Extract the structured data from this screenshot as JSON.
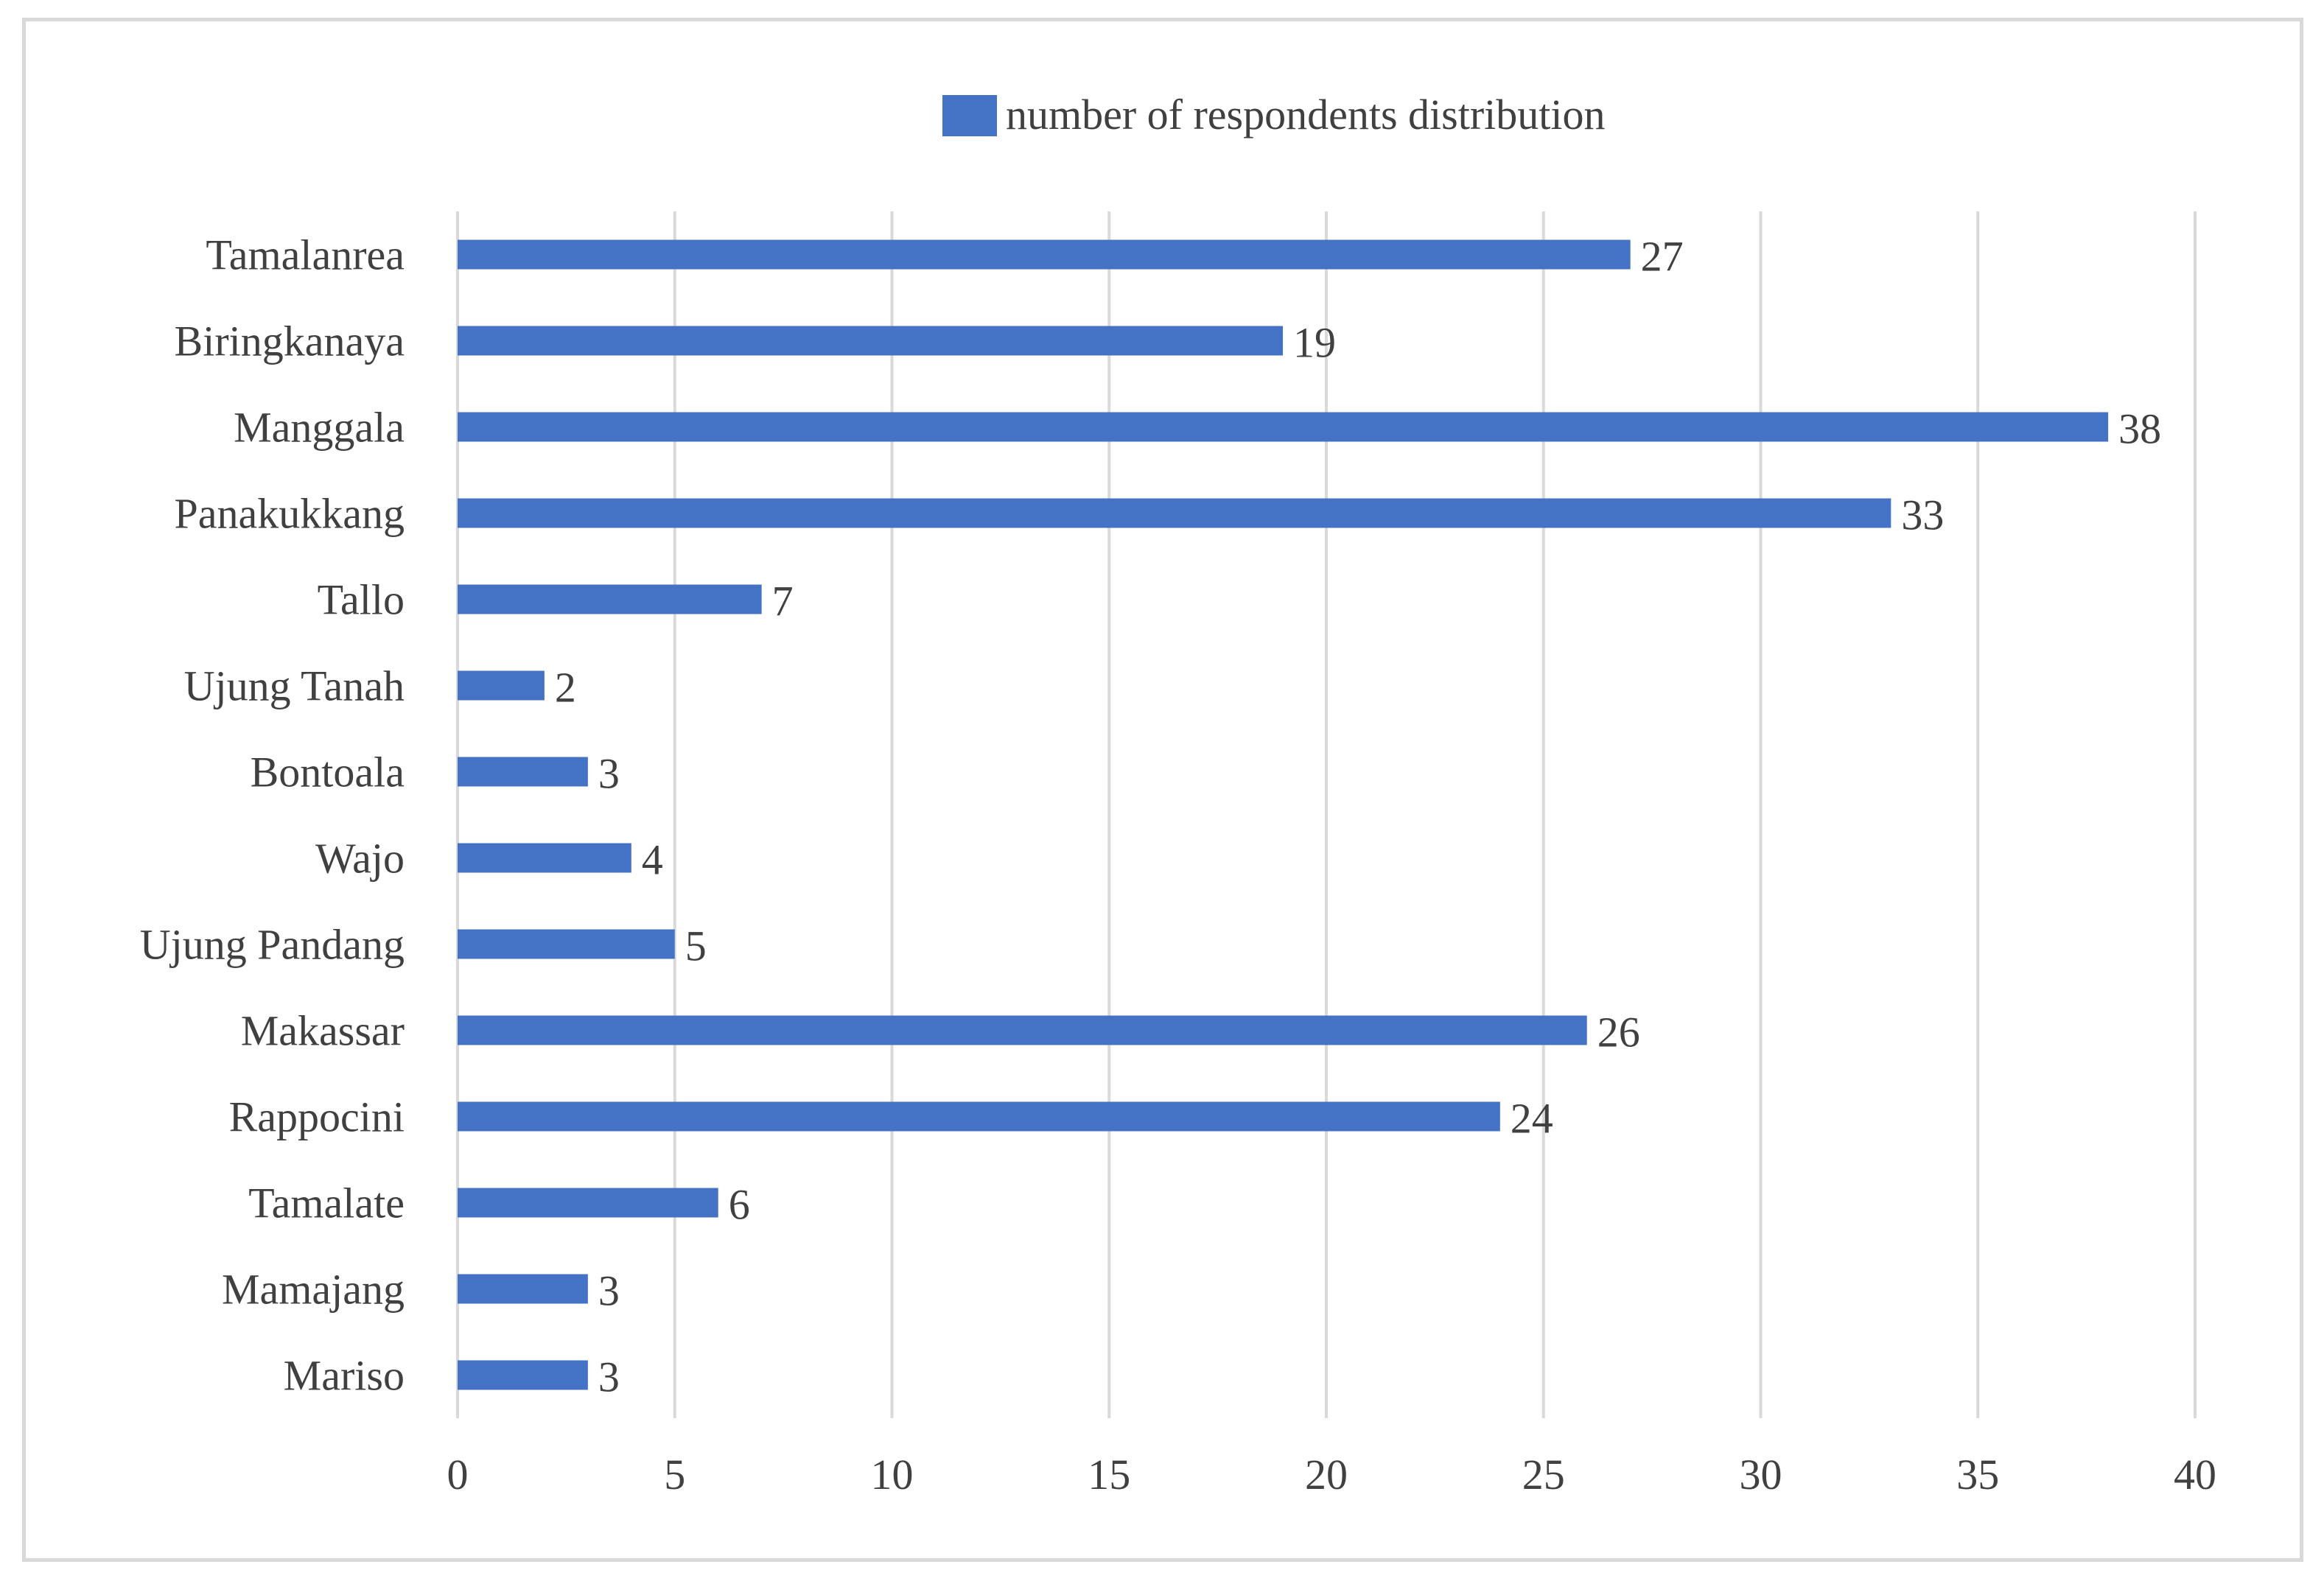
{
  "chart_data": {
    "type": "bar",
    "orientation": "horizontal",
    "title": "",
    "xlabel": "",
    "ylabel": "",
    "categories": [
      "Tamalanrea",
      "Biringkanaya",
      "Manggala",
      "Panakukkang",
      "Tallo",
      "Ujung Tanah",
      "Bontoala",
      "Wajo",
      "Ujung Pandang",
      "Makassar",
      "Rappocini",
      "Tamalate",
      "Mamajang",
      "Mariso"
    ],
    "series": [
      {
        "name": "number of respondents distribution",
        "values": [
          27,
          19,
          38,
          33,
          7,
          2,
          3,
          4,
          5,
          26,
          24,
          6,
          3,
          3
        ],
        "color": "#4472c4"
      }
    ],
    "xlim": [
      0,
      40
    ],
    "x_ticks": [
      0,
      5,
      10,
      15,
      20,
      25,
      30,
      35,
      40
    ],
    "grid": true,
    "legend": "top"
  }
}
